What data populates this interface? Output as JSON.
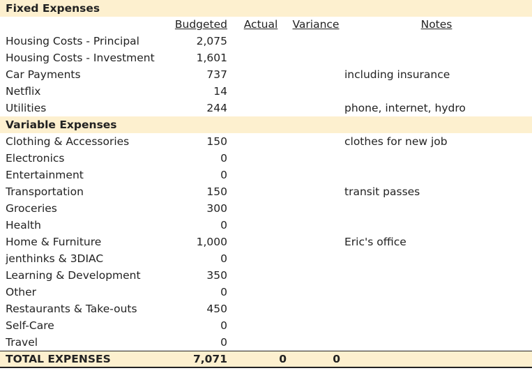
{
  "sections": {
    "fixed": "Fixed Expenses",
    "variable": "Variable Expenses"
  },
  "headers": {
    "budgeted": "Budgeted",
    "actual": "Actual",
    "variance": "Variance",
    "notes": "Notes"
  },
  "fixed_rows": [
    {
      "label": "Housing Costs - Principal",
      "budgeted": "2,075",
      "notes": ""
    },
    {
      "label": "Housing Costs - Investment",
      "budgeted": "1,601",
      "notes": ""
    },
    {
      "label": "Car Payments",
      "budgeted": "737",
      "notes": "including insurance"
    },
    {
      "label": "Netflix",
      "budgeted": "14",
      "notes": ""
    },
    {
      "label": "Utilities",
      "budgeted": "244",
      "notes": "phone, internet, hydro"
    }
  ],
  "variable_rows": [
    {
      "label": "Clothing & Accessories",
      "budgeted": "150",
      "notes": "clothes for new job"
    },
    {
      "label": "Electronics",
      "budgeted": "0",
      "notes": ""
    },
    {
      "label": "Entertainment",
      "budgeted": "0",
      "notes": ""
    },
    {
      "label": "Transportation",
      "budgeted": "150",
      "notes": "transit passes"
    },
    {
      "label": "Groceries",
      "budgeted": "300",
      "notes": ""
    },
    {
      "label": "Health",
      "budgeted": "0",
      "notes": ""
    },
    {
      "label": "Home & Furniture",
      "budgeted": "1,000",
      "notes": "Eric's office"
    },
    {
      "label": "jenthinks & 3DIAC",
      "budgeted": "0",
      "notes": ""
    },
    {
      "label": "Learning & Development",
      "budgeted": "350",
      "notes": ""
    },
    {
      "label": "Other",
      "budgeted": "0",
      "notes": ""
    },
    {
      "label": "Restaurants & Take-outs",
      "budgeted": "450",
      "notes": ""
    },
    {
      "label": "Self-Care",
      "budgeted": "0",
      "notes": ""
    },
    {
      "label": "Travel",
      "budgeted": "0",
      "notes": ""
    }
  ],
  "total": {
    "label": "TOTAL EXPENSES",
    "budgeted": "7,071",
    "actual": "0",
    "variance": "0"
  }
}
